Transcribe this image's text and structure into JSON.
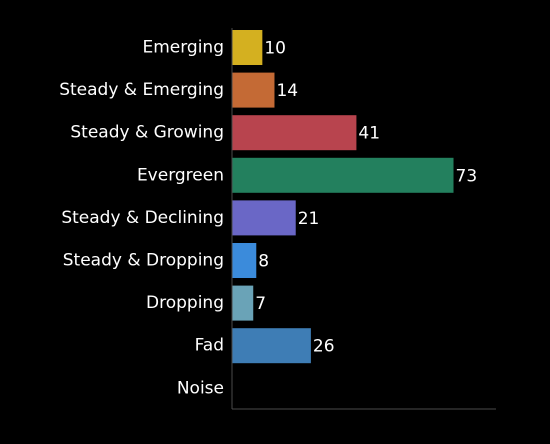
{
  "chart_data": {
    "type": "bar",
    "orientation": "horizontal",
    "categories": [
      "Emerging",
      "Steady & Emerging",
      "Steady & Growing",
      "Evergreen",
      "Steady & Declining",
      "Steady & Dropping",
      "Dropping",
      "Fad",
      "Noise"
    ],
    "values": [
      10,
      14,
      41,
      73,
      21,
      8,
      7,
      26,
      0
    ],
    "value_labels": [
      "10",
      "14",
      "41",
      "73",
      "21",
      "8",
      "7",
      "26",
      ""
    ],
    "colors": [
      "#D4B020",
      "#C46A35",
      "#B8444E",
      "#23805E",
      "#6A67C6",
      "#3B8BDB",
      "#6AA3B7",
      "#3E7DB5",
      "#3E7DB5"
    ],
    "xlim": [
      0,
      87
    ],
    "background": "#000000",
    "axis_color": "#4a4a4a",
    "grid": false,
    "legend": "none"
  }
}
